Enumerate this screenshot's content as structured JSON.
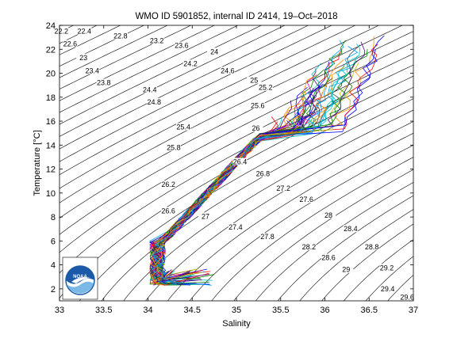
{
  "chart_data": {
    "type": "line",
    "title": "WMO ID 5901852, internal ID 2414, 19–Oct–2018",
    "xlabel": "Salinity",
    "ylabel": "Temperature [°C]",
    "xlim": [
      33,
      37
    ],
    "ylim": [
      1,
      24
    ],
    "xticks": [
      "33",
      "33.5",
      "34",
      "34.5",
      "35",
      "35.5",
      "36",
      "36.5",
      "37"
    ],
    "yticks": [
      "2",
      "4",
      "6",
      "8",
      "10",
      "12",
      "14",
      "16",
      "18",
      "20",
      "22",
      "24"
    ],
    "isopycnal_labels": [
      {
        "label": "22.2",
        "s": 33.02,
        "t": 23.5
      },
      {
        "label": "22.4",
        "s": 33.28,
        "t": 23.5
      },
      {
        "label": "22.8",
        "s": 33.69,
        "t": 23.1
      },
      {
        "label": "23.2",
        "s": 34.1,
        "t": 22.7
      },
      {
        "label": "22.6",
        "s": 33.12,
        "t": 22.45
      },
      {
        "label": "23.6",
        "s": 34.38,
        "t": 22.3
      },
      {
        "label": "24",
        "s": 34.75,
        "t": 21.8
      },
      {
        "label": "23",
        "s": 33.27,
        "t": 21.3
      },
      {
        "label": "24.2",
        "s": 34.48,
        "t": 20.8
      },
      {
        "label": "23.4",
        "s": 33.37,
        "t": 20.2
      },
      {
        "label": "24.6",
        "s": 34.9,
        "t": 20.2
      },
      {
        "label": "25",
        "s": 35.2,
        "t": 19.4
      },
      {
        "label": "23.8",
        "s": 33.5,
        "t": 19.2
      },
      {
        "label": "25.2",
        "s": 35.33,
        "t": 18.8
      },
      {
        "label": "24.4",
        "s": 34.02,
        "t": 18.6
      },
      {
        "label": "24.8",
        "s": 34.07,
        "t": 17.6
      },
      {
        "label": "25.6",
        "s": 35.24,
        "t": 17.3
      },
      {
        "label": "25.4",
        "s": 34.4,
        "t": 15.5
      },
      {
        "label": "26",
        "s": 35.22,
        "t": 15.4
      },
      {
        "label": "25.8",
        "s": 34.29,
        "t": 13.8
      },
      {
        "label": "26.4",
        "s": 35.04,
        "t": 12.6
      },
      {
        "label": "26.8",
        "s": 35.3,
        "t": 11.6
      },
      {
        "label": "26.2",
        "s": 34.23,
        "t": 10.7
      },
      {
        "label": "27.2",
        "s": 35.53,
        "t": 10.4
      },
      {
        "label": "27.6",
        "s": 35.79,
        "t": 9.45
      },
      {
        "label": "26.6",
        "s": 34.23,
        "t": 8.5
      },
      {
        "label": "27",
        "s": 34.65,
        "t": 8.05
      },
      {
        "label": "28",
        "s": 36.04,
        "t": 8.15
      },
      {
        "label": "27.4",
        "s": 34.99,
        "t": 7.15
      },
      {
        "label": "28.4",
        "s": 36.29,
        "t": 7.0
      },
      {
        "label": "27.8",
        "s": 35.35,
        "t": 6.35
      },
      {
        "label": "28.8",
        "s": 36.53,
        "t": 5.5
      },
      {
        "label": "28.2",
        "s": 35.82,
        "t": 5.5
      },
      {
        "label": "28.6",
        "s": 36.04,
        "t": 4.6
      },
      {
        "label": "29.2",
        "s": 36.7,
        "t": 3.75
      },
      {
        "label": "29",
        "s": 36.24,
        "t": 3.6
      },
      {
        "label": "29.4",
        "s": 36.71,
        "t": 2.0
      },
      {
        "label": "29.6",
        "s": 36.93,
        "t": 1.3
      }
    ],
    "grid": false,
    "legend": "none",
    "n_profiles": 60,
    "profile_envelope": {
      "deep_source": {
        "s": [
          34.0,
          34.2
        ],
        "t": [
          2.3,
          5.0
        ]
      },
      "thermocline": {
        "s": [
          34.05,
          35.5
        ],
        "t": [
          5.0,
          15.0
        ]
      },
      "surface": {
        "s": [
          35.5,
          36.6
        ],
        "t": [
          15.0,
          23.8
        ]
      }
    },
    "colors": {
      "contour": "#000000",
      "profiles": [
        "#0000ff",
        "#008000",
        "#ff0000",
        "#00bfbf",
        "#bf00bf",
        "#bfbf00",
        "#404040",
        "#4b0082",
        "#ff8c00",
        "#00a0ff"
      ],
      "noaa_blue": "#1a5aa8",
      "noaa_light": "#7ab8e6"
    },
    "logo": "NOAA"
  }
}
